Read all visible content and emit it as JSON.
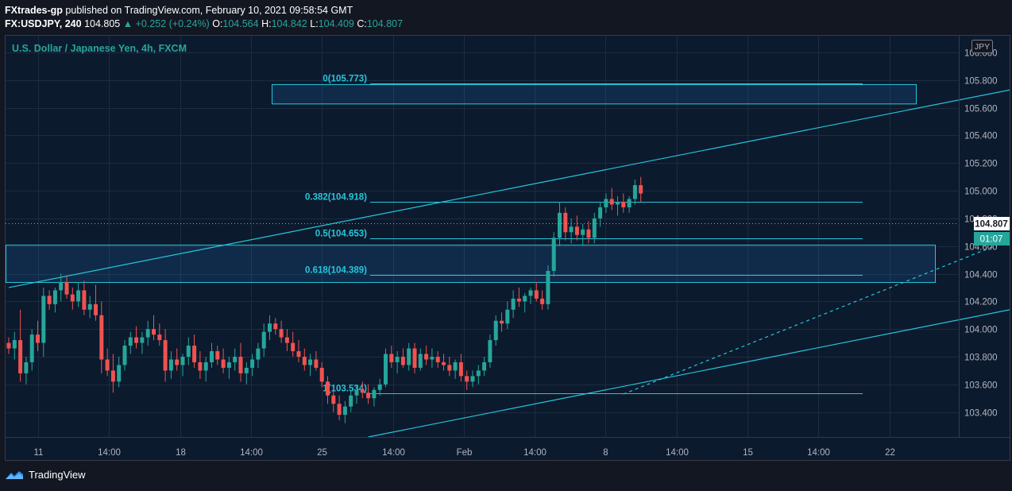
{
  "header": {
    "publisher": "FXtrades-gp",
    "published_text": "published on TradingView.com, February 10, 2021 09:58:54 GMT"
  },
  "symbol_bar": {
    "symbol": "FX:USDJPY, 240",
    "last": "104.805",
    "change": "+0.252 (+0.24%)",
    "o_label": "O:",
    "o": "104.564",
    "h_label": "H:",
    "h": "104.842",
    "l_label": "L:",
    "l": "104.409",
    "c_label": "C:",
    "c": "104.807"
  },
  "chart_title": "U.S. Dollar / Japanese Yen, 4h, FXCM",
  "currency_badge": "JPY",
  "price_tag": "104.807",
  "timer_tag": "01:07",
  "footer": {
    "brand": "TradingView"
  },
  "colors": {
    "up": "#26a69a",
    "down": "#ef5350",
    "drawing": "#26c6da",
    "background": "#0c1a2e"
  },
  "chart_data": {
    "type": "candlestick",
    "title": "U.S. Dollar / Japanese Yen, 4h, FXCM",
    "ylim": [
      103.22,
      106.12
    ],
    "y_ticks": [
      "106.000",
      "105.800",
      "105.600",
      "105.400",
      "105.200",
      "105.000",
      "104.800",
      "104.600",
      "104.400",
      "104.200",
      "104.000",
      "103.800",
      "103.600",
      "103.400"
    ],
    "x_ticks": [
      "11",
      "14:00",
      "18",
      "14:00",
      "25",
      "14:00",
      "Feb",
      "14:00",
      "8",
      "14:00",
      "15",
      "14:00",
      "22"
    ],
    "fib_levels": [
      {
        "label": "0(105.773)",
        "value": 105.773
      },
      {
        "label": "0.382(104.918)",
        "value": 104.918
      },
      {
        "label": "0.5(104.653)",
        "value": 104.653
      },
      {
        "label": "0.618(104.389)",
        "value": 104.389
      },
      {
        "label": "1(103.534)",
        "value": 103.534
      }
    ],
    "zones": [
      {
        "from": 105.63,
        "to": 105.77
      },
      {
        "from": 104.34,
        "to": 104.61
      }
    ],
    "trendlines": [
      {
        "from_index": 0,
        "from_value": 104.3,
        "to_index": 226,
        "to_value": 106.17
      },
      {
        "from_index": 62,
        "from_value": 103.22,
        "to_index": 240,
        "to_value": 104.7
      },
      {
        "from_index": 106,
        "from_value": 103.53,
        "to_index": 240,
        "to_value": 105.77,
        "dashed": true
      }
    ],
    "last_price": 104.807,
    "candles": [
      [
        103.9,
        103.94,
        103.82,
        103.86
      ],
      [
        103.86,
        103.98,
        103.78,
        103.92
      ],
      [
        103.92,
        104.14,
        103.62,
        103.68
      ],
      [
        103.68,
        103.8,
        103.6,
        103.76
      ],
      [
        103.76,
        104.0,
        103.7,
        103.96
      ],
      [
        103.96,
        104.06,
        103.84,
        103.9
      ],
      [
        103.9,
        104.3,
        103.8,
        104.24
      ],
      [
        104.24,
        104.28,
        104.14,
        104.18
      ],
      [
        104.18,
        104.3,
        104.12,
        104.28
      ],
      [
        104.28,
        104.4,
        104.2,
        104.34
      ],
      [
        104.34,
        104.38,
        104.22,
        104.25
      ],
      [
        104.25,
        104.3,
        104.14,
        104.2
      ],
      [
        104.2,
        104.34,
        104.16,
        104.28
      ],
      [
        104.28,
        104.35,
        104.1,
        104.14
      ],
      [
        104.14,
        104.24,
        104.08,
        104.18
      ],
      [
        104.18,
        104.32,
        104.06,
        104.1
      ],
      [
        104.1,
        104.2,
        103.68,
        103.78
      ],
      [
        103.78,
        103.86,
        103.66,
        103.7
      ],
      [
        103.7,
        103.82,
        103.54,
        103.62
      ],
      [
        103.62,
        103.8,
        103.58,
        103.74
      ],
      [
        103.74,
        103.92,
        103.7,
        103.88
      ],
      [
        103.88,
        103.98,
        103.82,
        103.94
      ],
      [
        103.94,
        104.02,
        103.86,
        103.9
      ],
      [
        103.9,
        103.98,
        103.82,
        103.94
      ],
      [
        103.94,
        104.06,
        103.88,
        104.0
      ],
      [
        104.0,
        104.1,
        103.92,
        103.96
      ],
      [
        103.96,
        104.04,
        103.88,
        103.92
      ],
      [
        103.92,
        104.0,
        103.62,
        103.7
      ],
      [
        103.7,
        103.84,
        103.64,
        103.78
      ],
      [
        103.78,
        103.86,
        103.7,
        103.74
      ],
      [
        103.74,
        103.82,
        103.66,
        103.8
      ],
      [
        103.8,
        103.94,
        103.74,
        103.88
      ],
      [
        103.88,
        103.96,
        103.72,
        103.76
      ],
      [
        103.76,
        103.84,
        103.64,
        103.7
      ],
      [
        103.7,
        103.8,
        103.62,
        103.76
      ],
      [
        103.76,
        103.9,
        103.72,
        103.84
      ],
      [
        103.84,
        103.88,
        103.74,
        103.78
      ],
      [
        103.78,
        103.86,
        103.68,
        103.72
      ],
      [
        103.72,
        103.8,
        103.64,
        103.76
      ],
      [
        103.76,
        103.86,
        103.7,
        103.8
      ],
      [
        103.8,
        103.9,
        103.62,
        103.68
      ],
      [
        103.68,
        103.76,
        103.6,
        103.72
      ],
      [
        103.72,
        103.82,
        103.66,
        103.78
      ],
      [
        103.78,
        103.9,
        103.72,
        103.86
      ],
      [
        103.86,
        104.04,
        103.8,
        103.98
      ],
      [
        103.98,
        104.1,
        103.92,
        104.04
      ],
      [
        104.04,
        104.08,
        103.96,
        104.0
      ],
      [
        104.0,
        104.06,
        103.9,
        103.94
      ],
      [
        103.94,
        104.0,
        103.84,
        103.9
      ],
      [
        103.9,
        103.98,
        103.8,
        103.84
      ],
      [
        103.84,
        103.92,
        103.76,
        103.8
      ],
      [
        103.8,
        103.86,
        103.7,
        103.74
      ],
      [
        103.74,
        103.82,
        103.66,
        103.78
      ],
      [
        103.78,
        103.84,
        103.7,
        103.72
      ],
      [
        103.72,
        103.76,
        103.58,
        103.62
      ],
      [
        103.62,
        103.66,
        103.46,
        103.52
      ],
      [
        103.52,
        103.58,
        103.4,
        103.46
      ],
      [
        103.46,
        103.52,
        103.34,
        103.38
      ],
      [
        103.38,
        103.48,
        103.32,
        103.44
      ],
      [
        103.44,
        103.56,
        103.4,
        103.52
      ],
      [
        103.52,
        103.6,
        103.46,
        103.56
      ],
      [
        103.56,
        103.62,
        103.5,
        103.54
      ],
      [
        103.54,
        103.6,
        103.46,
        103.5
      ],
      [
        103.5,
        103.58,
        103.44,
        103.56
      ],
      [
        103.56,
        103.64,
        103.52,
        103.6
      ],
      [
        103.6,
        103.86,
        103.58,
        103.82
      ],
      [
        103.82,
        103.88,
        103.72,
        103.76
      ],
      [
        103.76,
        103.84,
        103.68,
        103.8
      ],
      [
        103.8,
        103.86,
        103.72,
        103.74
      ],
      [
        103.74,
        103.9,
        103.7,
        103.86
      ],
      [
        103.86,
        103.9,
        103.68,
        103.72
      ],
      [
        103.72,
        103.86,
        103.7,
        103.82
      ],
      [
        103.82,
        103.88,
        103.74,
        103.78
      ],
      [
        103.78,
        103.86,
        103.72,
        103.8
      ],
      [
        103.8,
        103.84,
        103.72,
        103.76
      ],
      [
        103.76,
        103.82,
        103.7,
        103.74
      ],
      [
        103.74,
        103.8,
        103.66,
        103.7
      ],
      [
        103.7,
        103.78,
        103.64,
        103.76
      ],
      [
        103.76,
        103.82,
        103.62,
        103.66
      ],
      [
        103.66,
        103.7,
        103.56,
        103.62
      ],
      [
        103.62,
        103.7,
        103.58,
        103.66
      ],
      [
        103.66,
        103.74,
        103.6,
        103.7
      ],
      [
        103.7,
        103.8,
        103.66,
        103.76
      ],
      [
        103.76,
        103.96,
        103.72,
        103.92
      ],
      [
        103.92,
        104.1,
        103.88,
        104.06
      ],
      [
        104.06,
        104.12,
        103.98,
        104.04
      ],
      [
        104.04,
        104.2,
        104.0,
        104.14
      ],
      [
        104.14,
        104.28,
        104.08,
        104.22
      ],
      [
        104.22,
        104.3,
        104.16,
        104.2
      ],
      [
        104.2,
        104.26,
        104.12,
        104.24
      ],
      [
        104.24,
        104.3,
        104.18,
        104.28
      ],
      [
        104.28,
        104.34,
        104.2,
        104.22
      ],
      [
        104.22,
        104.28,
        104.14,
        104.18
      ],
      [
        104.18,
        104.46,
        104.14,
        104.42
      ],
      [
        104.42,
        104.7,
        104.38,
        104.66
      ],
      [
        104.66,
        104.92,
        104.6,
        104.84
      ],
      [
        104.84,
        104.88,
        104.64,
        104.7
      ],
      [
        104.7,
        104.8,
        104.62,
        104.74
      ],
      [
        104.74,
        104.82,
        104.64,
        104.68
      ],
      [
        104.68,
        104.76,
        104.6,
        104.72
      ],
      [
        104.72,
        104.78,
        104.62,
        104.66
      ],
      [
        104.66,
        104.84,
        104.62,
        104.8
      ],
      [
        104.8,
        104.92,
        104.74,
        104.88
      ],
      [
        104.88,
        104.98,
        104.84,
        104.94
      ],
      [
        104.94,
        105.02,
        104.86,
        104.9
      ],
      [
        104.9,
        104.96,
        104.82,
        104.92
      ],
      [
        104.92,
        104.98,
        104.84,
        104.88
      ],
      [
        104.88,
        104.96,
        104.84,
        104.94
      ],
      [
        104.94,
        105.08,
        104.9,
        105.04
      ],
      [
        105.04,
        105.1,
        104.92,
        104.98
      ]
    ]
  }
}
